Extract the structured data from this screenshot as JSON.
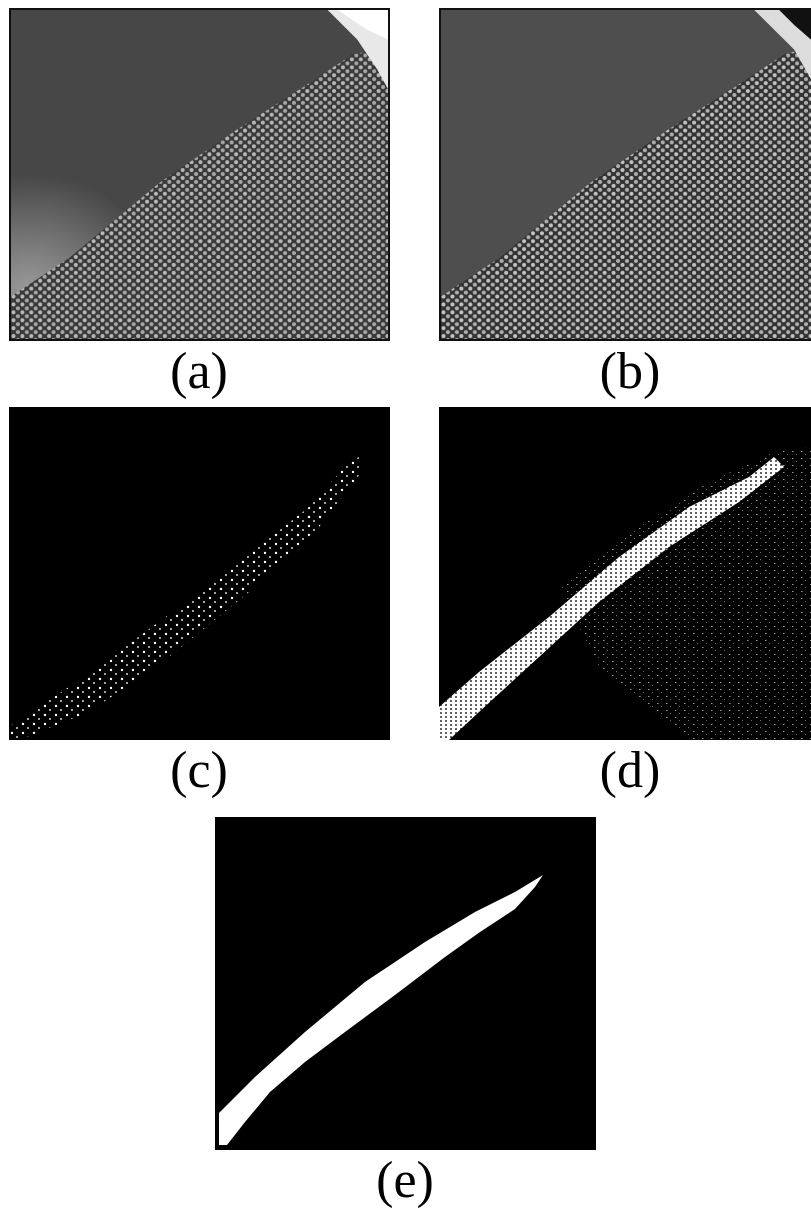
{
  "figure": {
    "panels": [
      {
        "id": "a",
        "label": "(a)",
        "content": "granular-pile-raw-frame"
      },
      {
        "id": "b",
        "label": "(b)",
        "content": "granular-pile-processed-frame"
      },
      {
        "id": "c",
        "label": "(c)",
        "content": "sparse-flowing-particle-map"
      },
      {
        "id": "d",
        "label": "(d)",
        "content": "dense-flowing-particle-map"
      },
      {
        "id": "e",
        "label": "(e)",
        "content": "flowing-layer-mask"
      }
    ],
    "colors": {
      "background": "#ffffff",
      "panel_dark": "#000000",
      "bead_gray": "#bdbdbd",
      "air_gray": "#4a4a4a",
      "mask_white": "#ffffff"
    }
  }
}
